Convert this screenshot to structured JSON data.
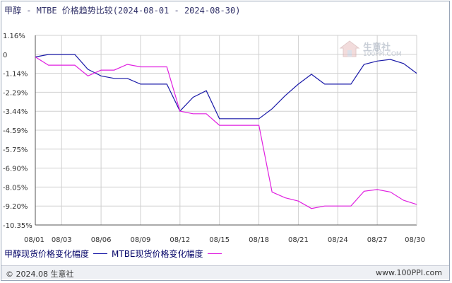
{
  "title": "甲醇 - MTBE 价格趋势比较(2024-08-01 - 2024-08-30)",
  "legend": [
    {
      "label": "甲醇现货价格变化幅度",
      "color": "#1a1aa8"
    },
    {
      "label": "MTBE现货价格变化幅度",
      "color": "#e020e0"
    }
  ],
  "footer": {
    "copyright": "© 2024.08 生意社",
    "url": "www.100PPI.com"
  },
  "watermark": {
    "name": "生意社",
    "url": "100PPI.COM"
  },
  "colors": {
    "grid": "#d0d0d0",
    "axis": "#555555",
    "background": "#ffffff"
  },
  "chart_data": {
    "type": "line",
    "title": "甲醇 - MTBE 价格趋势比较(2024-08-01 - 2024-08-30)",
    "xlabel": "",
    "ylabel": "",
    "x": [
      "08/01",
      "08/02",
      "08/03",
      "08/04",
      "08/05",
      "08/06",
      "08/07",
      "08/08",
      "08/09",
      "08/10",
      "08/11",
      "08/12",
      "08/13",
      "08/14",
      "08/15",
      "08/16",
      "08/17",
      "08/18",
      "08/19",
      "08/20",
      "08/21",
      "08/22",
      "08/23",
      "08/24",
      "08/25",
      "08/26",
      "08/27",
      "08/28",
      "08/29",
      "08/30"
    ],
    "x_tick_labels": [
      "08/01",
      "08/03",
      "08/06",
      "08/09",
      "08/12",
      "08/15",
      "08/18",
      "08/21",
      "08/24",
      "08/27",
      "08/30"
    ],
    "y_tick_labels": [
      "1.16%",
      "0",
      "-1.14%",
      "-2.29%",
      "-3.44%",
      "-4.59%",
      "-5.75%",
      "-6.90%",
      "-8.05%",
      "-9.20%",
      "-10.35%"
    ],
    "ylim": [
      -10.35,
      1.16
    ],
    "grid": true,
    "legend_position": "bottom",
    "series": [
      {
        "name": "甲醇现货价格变化幅度",
        "color": "#1a1aa8",
        "values": [
          -0.15,
          0.0,
          0.0,
          0.0,
          -0.9,
          -1.3,
          -1.45,
          -1.45,
          -1.8,
          -1.8,
          -1.8,
          -3.44,
          -2.6,
          -2.2,
          -3.9,
          -3.9,
          -3.9,
          -3.9,
          -3.3,
          -2.5,
          -1.8,
          -1.2,
          -1.8,
          -1.8,
          -1.8,
          -0.6,
          -0.4,
          -0.3,
          -0.55,
          -1.14
        ]
      },
      {
        "name": "MTBE现货价格变化幅度",
        "color": "#e020e0",
        "values": [
          -0.15,
          -0.65,
          -0.65,
          -0.65,
          -1.3,
          -0.95,
          -0.95,
          -0.6,
          -0.75,
          -0.75,
          -0.75,
          -3.44,
          -3.6,
          -3.6,
          -4.3,
          -4.3,
          -4.3,
          -4.3,
          -8.35,
          -8.7,
          -8.9,
          -9.35,
          -9.2,
          -9.2,
          -9.2,
          -8.3,
          -8.2,
          -8.35,
          -8.85,
          -9.1
        ]
      }
    ]
  }
}
